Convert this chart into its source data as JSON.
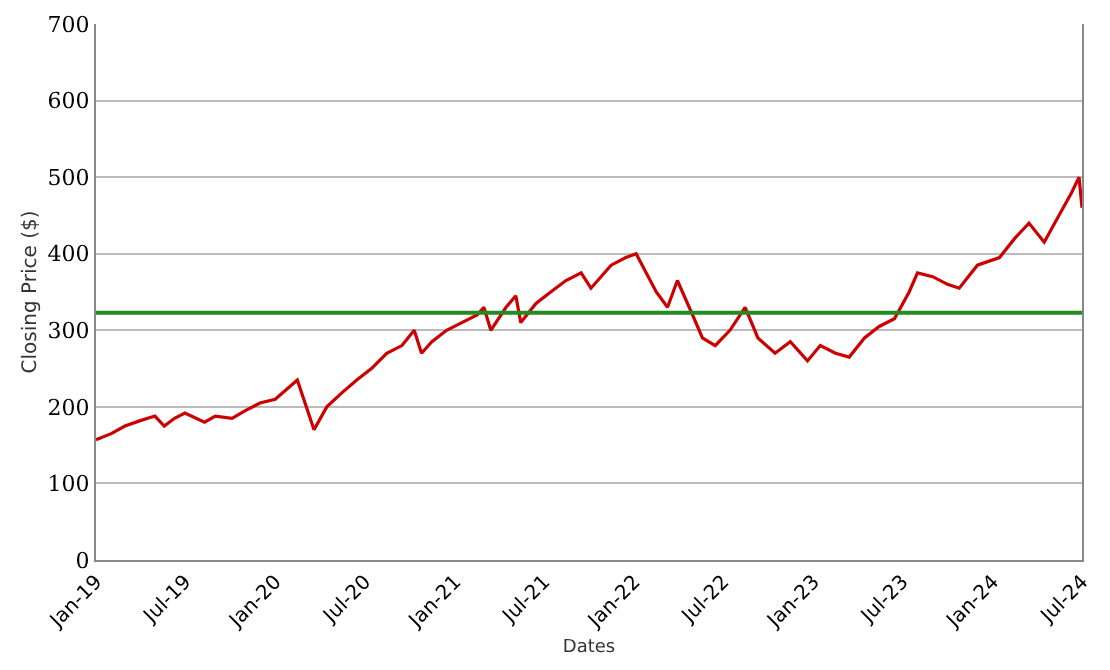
{
  "chart_data": {
    "type": "line",
    "xlabel": "Dates",
    "ylabel": "Closing Price ($)",
    "grid": "y",
    "marker": "none",
    "line_style": "solid",
    "x": [
      "2019-01-01",
      "2019-02-01",
      "2019-03-01",
      "2019-04-01",
      "2019-05-01",
      "2019-05-20",
      "2019-06-10",
      "2019-07-01",
      "2019-08-10",
      "2019-09-01",
      "2019-10-05",
      "2019-11-01",
      "2019-12-01",
      "2020-01-01",
      "2020-02-15",
      "2020-03-20",
      "2020-04-15",
      "2020-05-15",
      "2020-06-15",
      "2020-07-15",
      "2020-08-15",
      "2020-09-15",
      "2020-10-10",
      "2020-10-25",
      "2020-11-15",
      "2020-12-15",
      "2021-01-15",
      "2021-02-15",
      "2021-03-01",
      "2021-03-15",
      "2021-04-15",
      "2021-05-05",
      "2021-05-15",
      "2021-06-15",
      "2021-07-15",
      "2021-08-15",
      "2021-09-15",
      "2021-10-05",
      "2021-11-15",
      "2021-12-15",
      "2022-01-05",
      "2022-02-15",
      "2022-03-10",
      "2022-03-30",
      "2022-04-30",
      "2022-05-20",
      "2022-06-15",
      "2022-07-15",
      "2022-08-15",
      "2022-09-10",
      "2022-10-15",
      "2022-11-15",
      "2022-12-20",
      "2023-01-15",
      "2023-02-15",
      "2023-03-15",
      "2023-04-15",
      "2023-05-15",
      "2023-06-15",
      "2023-07-15",
      "2023-08-01",
      "2023-09-01",
      "2023-10-01",
      "2023-10-25",
      "2023-12-01",
      "2024-01-15",
      "2024-02-15",
      "2024-03-15",
      "2024-04-15",
      "2024-05-15",
      "2024-06-10",
      "2024-06-25",
      "2024-07-01"
    ],
    "series": [
      {
        "color": "#cc0000",
        "values": [
          157,
          165,
          175,
          182,
          188,
          175,
          185,
          192,
          180,
          188,
          185,
          195,
          205,
          210,
          235,
          170,
          200,
          218,
          235,
          250,
          270,
          280,
          300,
          270,
          285,
          300,
          310,
          320,
          330,
          300,
          330,
          345,
          310,
          335,
          350,
          365,
          375,
          355,
          385,
          395,
          400,
          350,
          330,
          365,
          320,
          290,
          280,
          300,
          330,
          290,
          270,
          285,
          260,
          280,
          270,
          265,
          290,
          305,
          315,
          350,
          375,
          370,
          360,
          355,
          385,
          395,
          420,
          440,
          415,
          450,
          480,
          500,
          460
        ]
      }
    ],
    "ref_lines": [
      {
        "axis": "y",
        "value": 323,
        "color": "#228b22"
      }
    ],
    "xlim": [
      "2019-01-01",
      "2024-07-01"
    ],
    "xticks": [
      {
        "value": "2019-01-01",
        "label": "Jan-19"
      },
      {
        "value": "2019-07-01",
        "label": "Jul-19"
      },
      {
        "value": "2020-01-01",
        "label": "Jan-20"
      },
      {
        "value": "2020-07-01",
        "label": "Jul-20"
      },
      {
        "value": "2021-01-01",
        "label": "Jan-21"
      },
      {
        "value": "2021-07-01",
        "label": "Jul-21"
      },
      {
        "value": "2022-01-01",
        "label": "Jan-22"
      },
      {
        "value": "2022-07-01",
        "label": "Jul-22"
      },
      {
        "value": "2023-01-01",
        "label": "Jan-23"
      },
      {
        "value": "2023-07-01",
        "label": "Jul-23"
      },
      {
        "value": "2024-01-01",
        "label": "Jan-24"
      },
      {
        "value": "2024-07-01",
        "label": "Jul-24"
      }
    ],
    "ylim": [
      0,
      700
    ],
    "yticks": [
      0,
      100,
      200,
      300,
      400,
      500,
      600,
      700
    ]
  }
}
